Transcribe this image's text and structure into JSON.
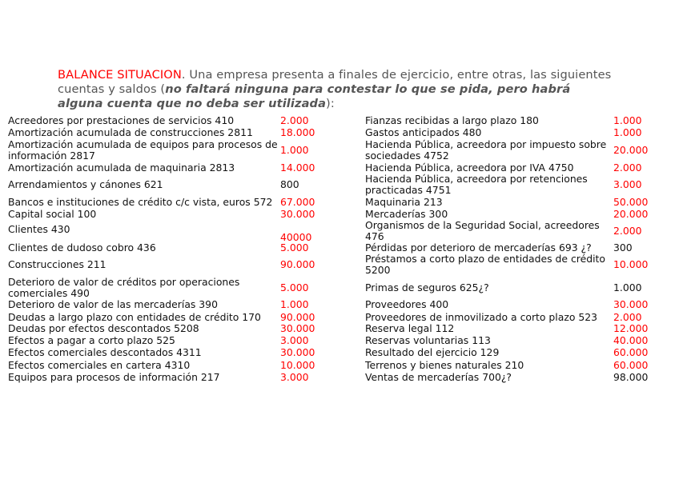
{
  "intro": {
    "heading": "BALANCE SITUACION",
    "text1": ". Una empresa presenta a finales de ejercicio, entre otras, las siguientes cuentas y saldos (",
    "emphasis": "no faltará ninguna para contestar lo que se pida, pero habrá alguna cuenta que no deba ser utilizada",
    "text2": "):"
  },
  "colors": {
    "highlight": "#ff0000",
    "text": "#111111",
    "intro": "#555555"
  },
  "left_accounts": [
    {
      "label": "Acreedores por prestaciones de servicios 410",
      "value": "2.000",
      "red": true
    },
    {
      "label": "Amortización acumulada de construcciones 2811",
      "value": "18.000",
      "red": true
    },
    {
      "label": "Amortización acumulada de equipos para procesos de información 2817",
      "value": "1.000",
      "red": true
    },
    {
      "label": "Amortización acumulada de maquinaria 2813",
      "value": "14.000",
      "red": true
    },
    {
      "label": "Arrendamientos y cánones 621",
      "value": "800",
      "red": false
    },
    {
      "label": "Bancos e instituciones de crédito c/c vista, euros 572",
      "value": "67.000",
      "red": true
    },
    {
      "label": "Capital social 100",
      "value": "30.000",
      "red": true
    },
    {
      "label": "Clientes 430",
      "value": "40000",
      "red": true
    },
    {
      "label": "Clientes de dudoso cobro 436",
      "value": "5.000",
      "red": true
    },
    {
      "label": "Construcciones 211",
      "value": "90.000",
      "red": true
    },
    {
      "label": "Deterioro de valor de créditos por operaciones comerciales 490",
      "value": "5.000",
      "red": true
    },
    {
      "label": "Deterioro de valor de las mercaderías 390",
      "value": "1.000",
      "red": true
    },
    {
      "label": "Deudas a largo plazo con entidades de crédito 170",
      "value": "90.000",
      "red": true
    },
    {
      "label": "Deudas por efectos descontados 5208",
      "value": "30.000",
      "red": true
    },
    {
      "label": "Efectos a pagar a corto plazo 525",
      "value": "3.000",
      "red": true
    },
    {
      "label": "Efectos comerciales descontados 4311",
      "value": "30.000",
      "red": true
    },
    {
      "label": "Efectos comerciales en cartera 4310",
      "value": "10.000",
      "red": true
    },
    {
      "label": "Equipos para procesos de información 217",
      "value": "3.000",
      "red": true
    }
  ],
  "right_accounts": [
    {
      "label": "Fianzas recibidas a largo plazo 180",
      "value": "1.000",
      "red": true
    },
    {
      "label": "Gastos anticipados 480",
      "value": "1.000",
      "red": true
    },
    {
      "label": "Hacienda Pública, acreedora por impuesto sobre sociedades 4752",
      "value": "20.000",
      "red": true
    },
    {
      "label": "Hacienda Pública, acreedora por IVA 4750",
      "value": "2.000",
      "red": true
    },
    {
      "label": "Hacienda Pública, acreedora por retenciones practicadas 4751",
      "value": "3.000",
      "red": true
    },
    {
      "label": "Maquinaria 213",
      "value": "50.000",
      "red": true
    },
    {
      "label": "Mercaderías 300",
      "value": "20.000",
      "red": true
    },
    {
      "label": "Organismos de la Seguridad Social, acreedores 476",
      "value": "2.000",
      "red": true
    },
    {
      "label": "Pérdidas por deterioro de mercaderías 693 ¿?",
      "value": "300",
      "red": false
    },
    {
      "label": "Préstamos a corto plazo de entidades de crédito 5200",
      "value": "10.000",
      "red": true
    },
    {
      "label": "Primas de seguros 625¿?",
      "value": "1.000",
      "red": false
    },
    {
      "label": "Proveedores 400",
      "value": "30.000",
      "red": true
    },
    {
      "label": "Proveedores de inmovilizado a corto plazo 523",
      "value": "2.000",
      "red": true
    },
    {
      "label": "Reserva legal 112",
      "value": "12.000",
      "red": true
    },
    {
      "label": "Reservas voluntarias 113",
      "value": "40.000",
      "red": true
    },
    {
      "label": "Resultado del ejercicio 129",
      "value": "60.000",
      "red": true
    },
    {
      "label": "Terrenos y bienes naturales 210",
      "value": "60.000",
      "red": true
    },
    {
      "label": "Ventas de mercaderías 700¿?",
      "value": "98.000",
      "red": false
    }
  ]
}
